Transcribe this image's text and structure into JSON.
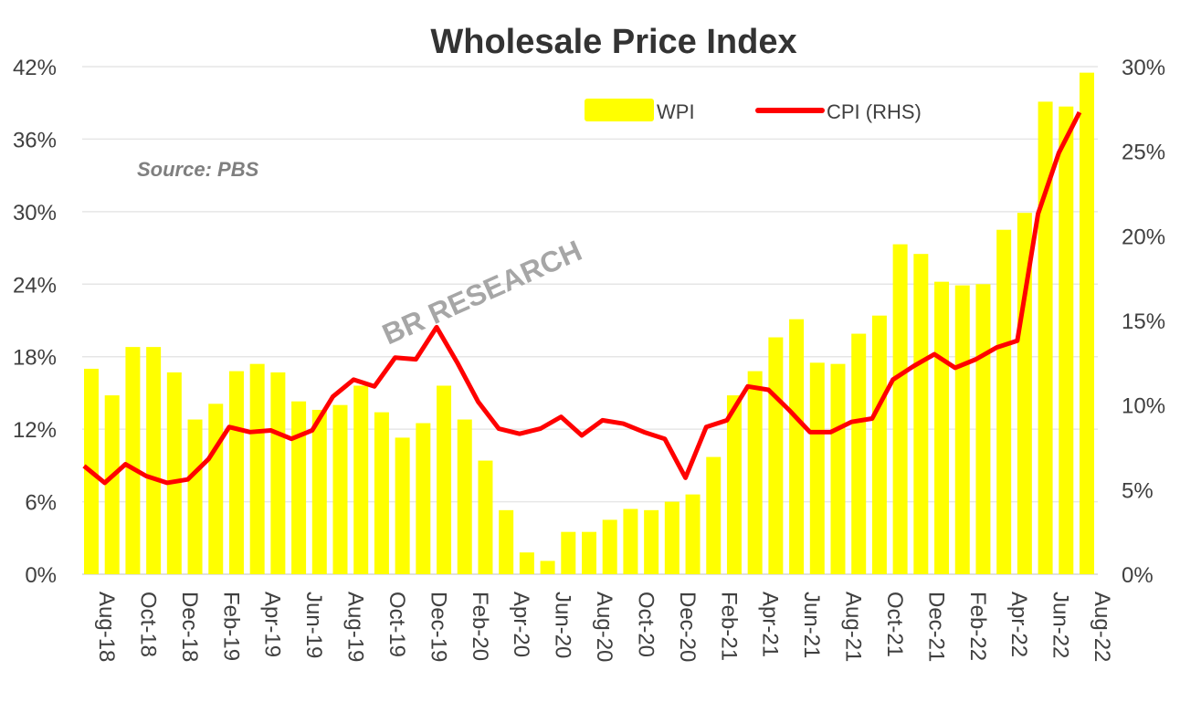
{
  "chart_data": {
    "type": "bar+line",
    "title": "Wholesale Price Index",
    "source": "Source: PBS",
    "watermark": "BR RESEARCH",
    "legend_position": "top-right",
    "categories": [
      "Aug-18",
      "Sep-18",
      "Oct-18",
      "Nov-18",
      "Dec-18",
      "Jan-19",
      "Feb-19",
      "Mar-19",
      "Apr-19",
      "May-19",
      "Jun-19",
      "Jul-19",
      "Aug-19",
      "Sep-19",
      "Oct-19",
      "Nov-19",
      "Dec-19",
      "Jan-20",
      "Feb-20",
      "Mar-20",
      "Apr-20",
      "May-20",
      "Jun-20",
      "Jul-20",
      "Aug-20",
      "Sep-20",
      "Oct-20",
      "Nov-20",
      "Dec-20",
      "Jan-21",
      "Feb-21",
      "Mar-21",
      "Apr-21",
      "May-21",
      "Jun-21",
      "Jul-21",
      "Aug-21",
      "Sep-21",
      "Oct-21",
      "Nov-21",
      "Dec-21",
      "Jan-22",
      "Feb-22",
      "Mar-22",
      "Apr-22",
      "May-22",
      "Jun-22",
      "Jul-22",
      "Aug-22"
    ],
    "series": [
      {
        "name": "WPI",
        "type": "bar",
        "axis": "left",
        "color": "#FFFF00",
        "values": [
          17.0,
          14.8,
          18.8,
          18.8,
          16.7,
          12.8,
          14.1,
          16.8,
          17.4,
          16.7,
          14.3,
          13.6,
          14.0,
          15.6,
          13.4,
          11.3,
          12.5,
          15.6,
          12.8,
          9.4,
          5.3,
          1.8,
          1.1,
          3.5,
          3.5,
          4.5,
          5.4,
          5.3,
          6.0,
          6.6,
          9.7,
          14.8,
          16.8,
          19.6,
          21.1,
          17.5,
          17.4,
          19.9,
          21.4,
          27.3,
          26.5,
          24.2,
          23.9,
          24.0,
          28.5,
          29.9,
          39.1,
          38.7,
          41.5
        ]
      },
      {
        "name": "CPI (RHS)",
        "type": "line",
        "axis": "right",
        "color": "#FF0000",
        "values": [
          6.4,
          5.4,
          6.5,
          5.8,
          5.4,
          5.6,
          6.8,
          8.7,
          8.4,
          8.5,
          8.0,
          8.5,
          10.5,
          11.5,
          11.1,
          12.8,
          12.7,
          14.6,
          12.5,
          10.2,
          8.6,
          8.3,
          8.6,
          9.3,
          8.2,
          9.1,
          8.9,
          8.4,
          8.0,
          5.7,
          8.7,
          9.1,
          11.1,
          10.9,
          9.7,
          8.4,
          8.4,
          9.0,
          9.2,
          11.5,
          12.3,
          13.0,
          12.2,
          12.7,
          13.4,
          13.8,
          21.3,
          24.9,
          27.3
        ]
      }
    ],
    "left_axis": {
      "ylim": [
        0,
        42
      ],
      "ticks": [
        "0%",
        "6%",
        "12%",
        "18%",
        "24%",
        "30%",
        "36%",
        "42%"
      ]
    },
    "right_axis": {
      "ylim": [
        0,
        30
      ],
      "ticks": [
        "0%",
        "5%",
        "10%",
        "15%",
        "20%",
        "25%",
        "30%"
      ]
    },
    "x_tick_labels": [
      "Aug-18",
      "Oct-18",
      "Dec-18",
      "Feb-19",
      "Apr-19",
      "Jun-19",
      "Aug-19",
      "Oct-19",
      "Dec-19",
      "Feb-20",
      "Apr-20",
      "Jun-20",
      "Aug-20",
      "Oct-20",
      "Dec-20",
      "Feb-21",
      "Apr-21",
      "Jun-21",
      "Aug-21",
      "Oct-21",
      "Dec-21",
      "Feb-22",
      "Apr-22",
      "Jun-22",
      "Aug-22"
    ],
    "grid": true
  }
}
